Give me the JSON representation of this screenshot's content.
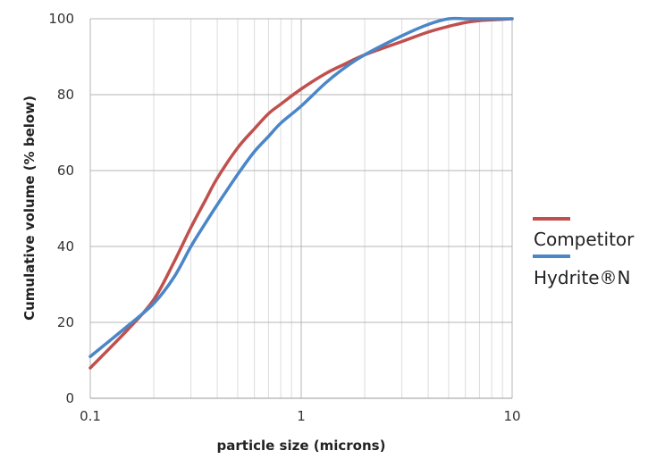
{
  "chart_data": {
    "type": "line",
    "xlabel": "particle size (microns)",
    "ylabel": "Cumulative volume (% below)",
    "x_scale": "log",
    "xlim": [
      0.1,
      10
    ],
    "ylim": [
      0,
      100
    ],
    "x_ticks": [
      0.1,
      1,
      10
    ],
    "x_tick_labels": [
      "0.1",
      "1",
      "10"
    ],
    "y_ticks": [
      0,
      20,
      40,
      60,
      80,
      100
    ],
    "y_tick_labels": [
      "0",
      "20",
      "40",
      "60",
      "80",
      "100"
    ],
    "grid": true,
    "legend_position": "right",
    "series": [
      {
        "name": "Competitor",
        "color": "#c0504d",
        "x": [
          0.1,
          0.15,
          0.2,
          0.25,
          0.3,
          0.35,
          0.4,
          0.5,
          0.6,
          0.7,
          0.8,
          1.0,
          1.3,
          1.6,
          2.0,
          3.0,
          4.0,
          5.0,
          6.0,
          7.0,
          8.0,
          10.0
        ],
        "y": [
          8,
          18,
          26,
          36,
          45,
          52,
          58,
          66,
          71,
          75,
          77.5,
          81.5,
          85.5,
          88,
          90.5,
          94,
          96.5,
          98,
          99,
          99.5,
          99.7,
          100
        ]
      },
      {
        "name": "Hydrite®N",
        "color": "#4a86c8",
        "x": [
          0.1,
          0.15,
          0.2,
          0.25,
          0.3,
          0.35,
          0.4,
          0.5,
          0.6,
          0.7,
          0.8,
          1.0,
          1.3,
          1.6,
          2.0,
          3.0,
          4.0,
          5.0,
          6.0,
          7.0,
          8.0,
          10.0
        ],
        "y": [
          11,
          19,
          25,
          32,
          40,
          46,
          51,
          59,
          65,
          69,
          72.5,
          77,
          83,
          87,
          90.5,
          95.5,
          98.5,
          100,
          100,
          100,
          100,
          100
        ]
      }
    ]
  }
}
